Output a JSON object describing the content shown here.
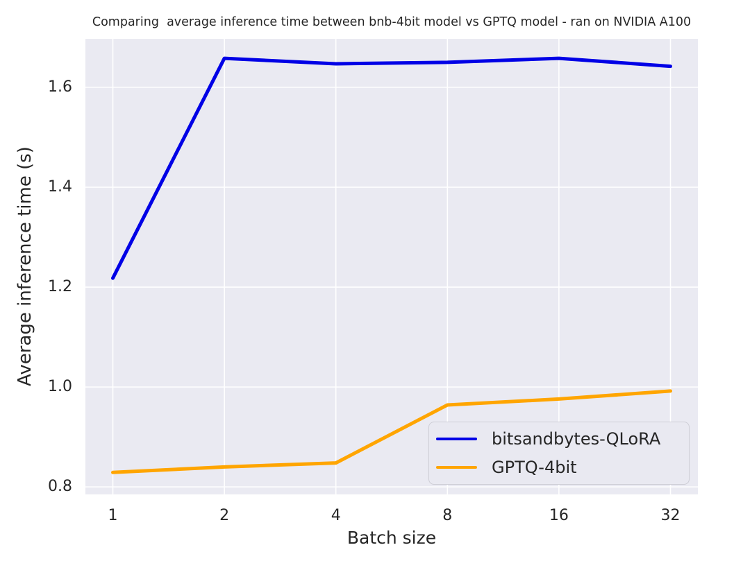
{
  "styles": {
    "plot_bg": "#eaeaf2",
    "grid_color": "#ffffff",
    "text_color": "#262626",
    "legend_bg": "#e9e9f1",
    "legend_border": "#cdcdd5"
  },
  "chart_data": {
    "type": "line",
    "title": "Comparing  average inference time between bnb-4bit model vs GPTQ model - ran on NVIDIA A100",
    "xlabel": "Batch size",
    "ylabel": "Average inference time (s)",
    "categories": [
      "1",
      "2",
      "4",
      "8",
      "16",
      "32"
    ],
    "x_layout": "categorical equal spacing (log2 batch sizes)",
    "yticks": [
      "0.8",
      "1.0",
      "1.2",
      "1.4",
      "1.6"
    ],
    "ylim": [
      0.785,
      1.697
    ],
    "grid": true,
    "legend_position": "lower right",
    "series": [
      {
        "name": "bitsandbytes-QLoRA",
        "color": "#0000e6",
        "values": [
          1.218,
          1.658,
          1.647,
          1.65,
          1.658,
          1.642
        ]
      },
      {
        "name": "GPTQ-4bit",
        "color": "#ffa500",
        "values": [
          0.829,
          0.84,
          0.848,
          0.964,
          0.976,
          0.992
        ]
      }
    ]
  }
}
